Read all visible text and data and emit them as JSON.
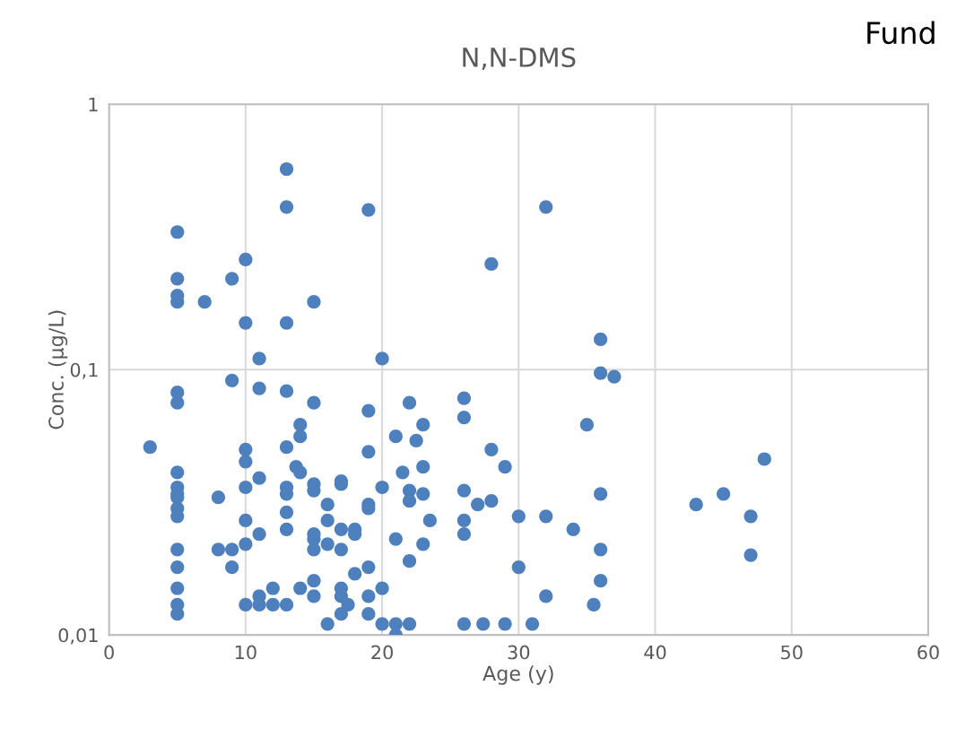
{
  "chart_data": {
    "type": "scatter",
    "title": "N,N-DMS",
    "xlabel": "Age (y)",
    "ylabel": "Conc. (µg/L)",
    "annotations": [
      "Fund"
    ],
    "log": "y",
    "grid": true,
    "marker": "circle",
    "legend": false,
    "xlim": [
      0,
      60
    ],
    "xticks": [
      0,
      10,
      20,
      30,
      40,
      50,
      60
    ],
    "ylim": [
      0.01,
      1
    ],
    "yticks": [
      {
        "value": 0.01,
        "label": "0,01"
      },
      {
        "value": 0.1,
        "label": "0,1"
      },
      {
        "value": 1,
        "label": "1"
      }
    ],
    "series": [
      {
        "color": "#4e80bd",
        "x": [
          3,
          5,
          5,
          5,
          5,
          5,
          5,
          5,
          5,
          5,
          5,
          5,
          5,
          5,
          5,
          5,
          5,
          5,
          7,
          8,
          8,
          9,
          9,
          9,
          9,
          10,
          10,
          10,
          10,
          10,
          10,
          10,
          10,
          11,
          11,
          11,
          11,
          11,
          11,
          12,
          12,
          13,
          13,
          13,
          13,
          13,
          13,
          13,
          13,
          13,
          13,
          13.7,
          14,
          14,
          14,
          14,
          15,
          15,
          15,
          15,
          15,
          15,
          15,
          15,
          15,
          16,
          16,
          16,
          16,
          17,
          17,
          17,
          17,
          17,
          17,
          17,
          17.5,
          18,
          18,
          18,
          19,
          19,
          19,
          19,
          19,
          19,
          19,
          19,
          20,
          20,
          20,
          20,
          21,
          21,
          21,
          21,
          21.5,
          22,
          22,
          22,
          22,
          22,
          22.5,
          23,
          23,
          23,
          23,
          23.5,
          26,
          26,
          26,
          26,
          26,
          26,
          27,
          27.4,
          28,
          28,
          28,
          29,
          29,
          30,
          30,
          31,
          32,
          32,
          32,
          34,
          35,
          35.5,
          36,
          36,
          36,
          36,
          36,
          37,
          43,
          45,
          47,
          47,
          48
        ],
        "values": [
          0.051,
          0.33,
          0.22,
          0.19,
          0.18,
          0.082,
          0.075,
          0.041,
          0.036,
          0.034,
          0.033,
          0.03,
          0.028,
          0.021,
          0.018,
          0.015,
          0.013,
          0.012,
          0.18,
          0.033,
          0.021,
          0.22,
          0.091,
          0.021,
          0.018,
          0.26,
          0.15,
          0.05,
          0.045,
          0.036,
          0.027,
          0.022,
          0.013,
          0.11,
          0.085,
          0.039,
          0.024,
          0.014,
          0.013,
          0.015,
          0.013,
          0.57,
          0.41,
          0.15,
          0.083,
          0.051,
          0.036,
          0.034,
          0.029,
          0.025,
          0.013,
          0.043,
          0.062,
          0.056,
          0.041,
          0.015,
          0.18,
          0.075,
          0.037,
          0.035,
          0.024,
          0.023,
          0.021,
          0.016,
          0.014,
          0.031,
          0.027,
          0.022,
          0.011,
          0.038,
          0.037,
          0.025,
          0.021,
          0.015,
          0.014,
          0.012,
          0.013,
          0.025,
          0.024,
          0.017,
          0.4,
          0.07,
          0.049,
          0.031,
          0.03,
          0.018,
          0.014,
          0.012,
          0.11,
          0.036,
          0.015,
          0.011,
          0.056,
          0.023,
          0.011,
          0.01,
          0.041,
          0.075,
          0.035,
          0.032,
          0.019,
          0.011,
          0.054,
          0.062,
          0.043,
          0.034,
          0.022,
          0.027,
          0.078,
          0.066,
          0.035,
          0.027,
          0.024,
          0.011,
          0.031,
          0.011,
          0.25,
          0.05,
          0.032,
          0.043,
          0.011,
          0.028,
          0.018,
          0.011,
          0.41,
          0.028,
          0.014,
          0.025,
          0.062,
          0.013,
          0.13,
          0.097,
          0.034,
          0.021,
          0.016,
          0.094,
          0.031,
          0.034,
          0.028,
          0.02,
          0.046
        ]
      }
    ]
  }
}
